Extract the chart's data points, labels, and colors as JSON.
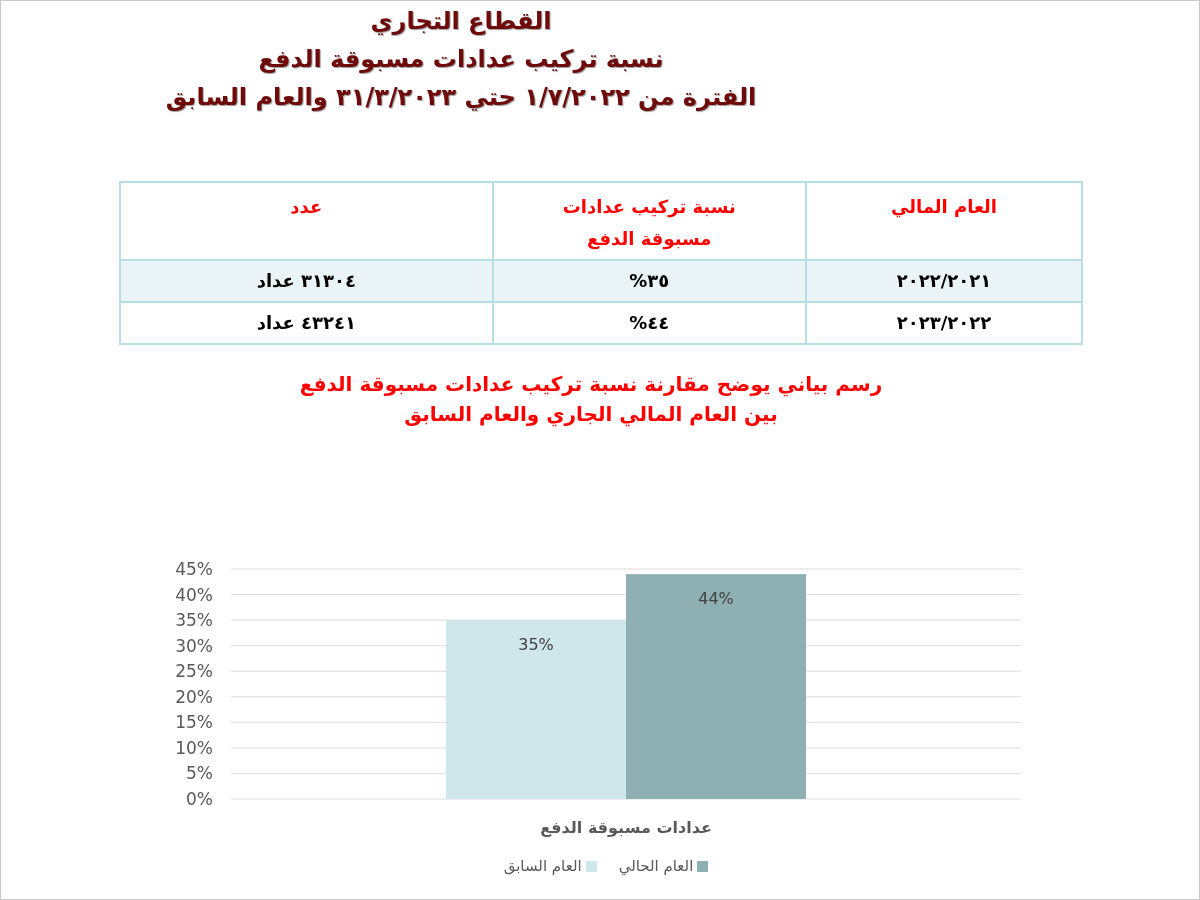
{
  "chart_data": {
    "type": "bar",
    "title": "رسم بياني يوضح مقارنة نسبة تركيب عدادات مسبوقة الدفع بين العام المالي الجاري والعام السابق",
    "categories": [
      "عدادات مسبوقة الدفع"
    ],
    "series": [
      {
        "name": "العام السابق",
        "color": "#cfe6ea",
        "values": [
          35
        ],
        "value_labels": [
          "35%"
        ]
      },
      {
        "name": "العام الحالي",
        "color": "#8fb0b3",
        "values": [
          44
        ],
        "value_labels": [
          "44%"
        ]
      }
    ],
    "ylim": [
      0,
      45
    ],
    "yticks": [
      {
        "value": 0,
        "label": "0%"
      },
      {
        "value": 5,
        "label": "5%"
      },
      {
        "value": 10,
        "label": "10%"
      },
      {
        "value": 15,
        "label": "15%"
      },
      {
        "value": 20,
        "label": "20%"
      },
      {
        "value": 25,
        "label": "25%"
      },
      {
        "value": 30,
        "label": "30%"
      },
      {
        "value": 35,
        "label": "35%"
      },
      {
        "value": 40,
        "label": "40%"
      },
      {
        "value": 45,
        "label": "45%"
      }
    ],
    "grid": "y",
    "legend": "bottom",
    "annotations": [
      "القطاع التجاري",
      "نسبة تركيب عدادات مسبوقة الدفع",
      "الفترة من ١/٧/٢٠٢٢ حتي ٣١/٣/٢٠٢٣ والعام السابق",
      "العام المالي",
      "نسبة تركيب عدادات مسبوقة الدفع",
      "عدد",
      "٢٠٢٢/٢٠٢١",
      "٣٥%",
      "٣١٣٠٤ عداد",
      "٢٠٢٣/٢٠٢٢",
      "٤٤%",
      "٤٣٢٤١ عداد"
    ]
  }
}
